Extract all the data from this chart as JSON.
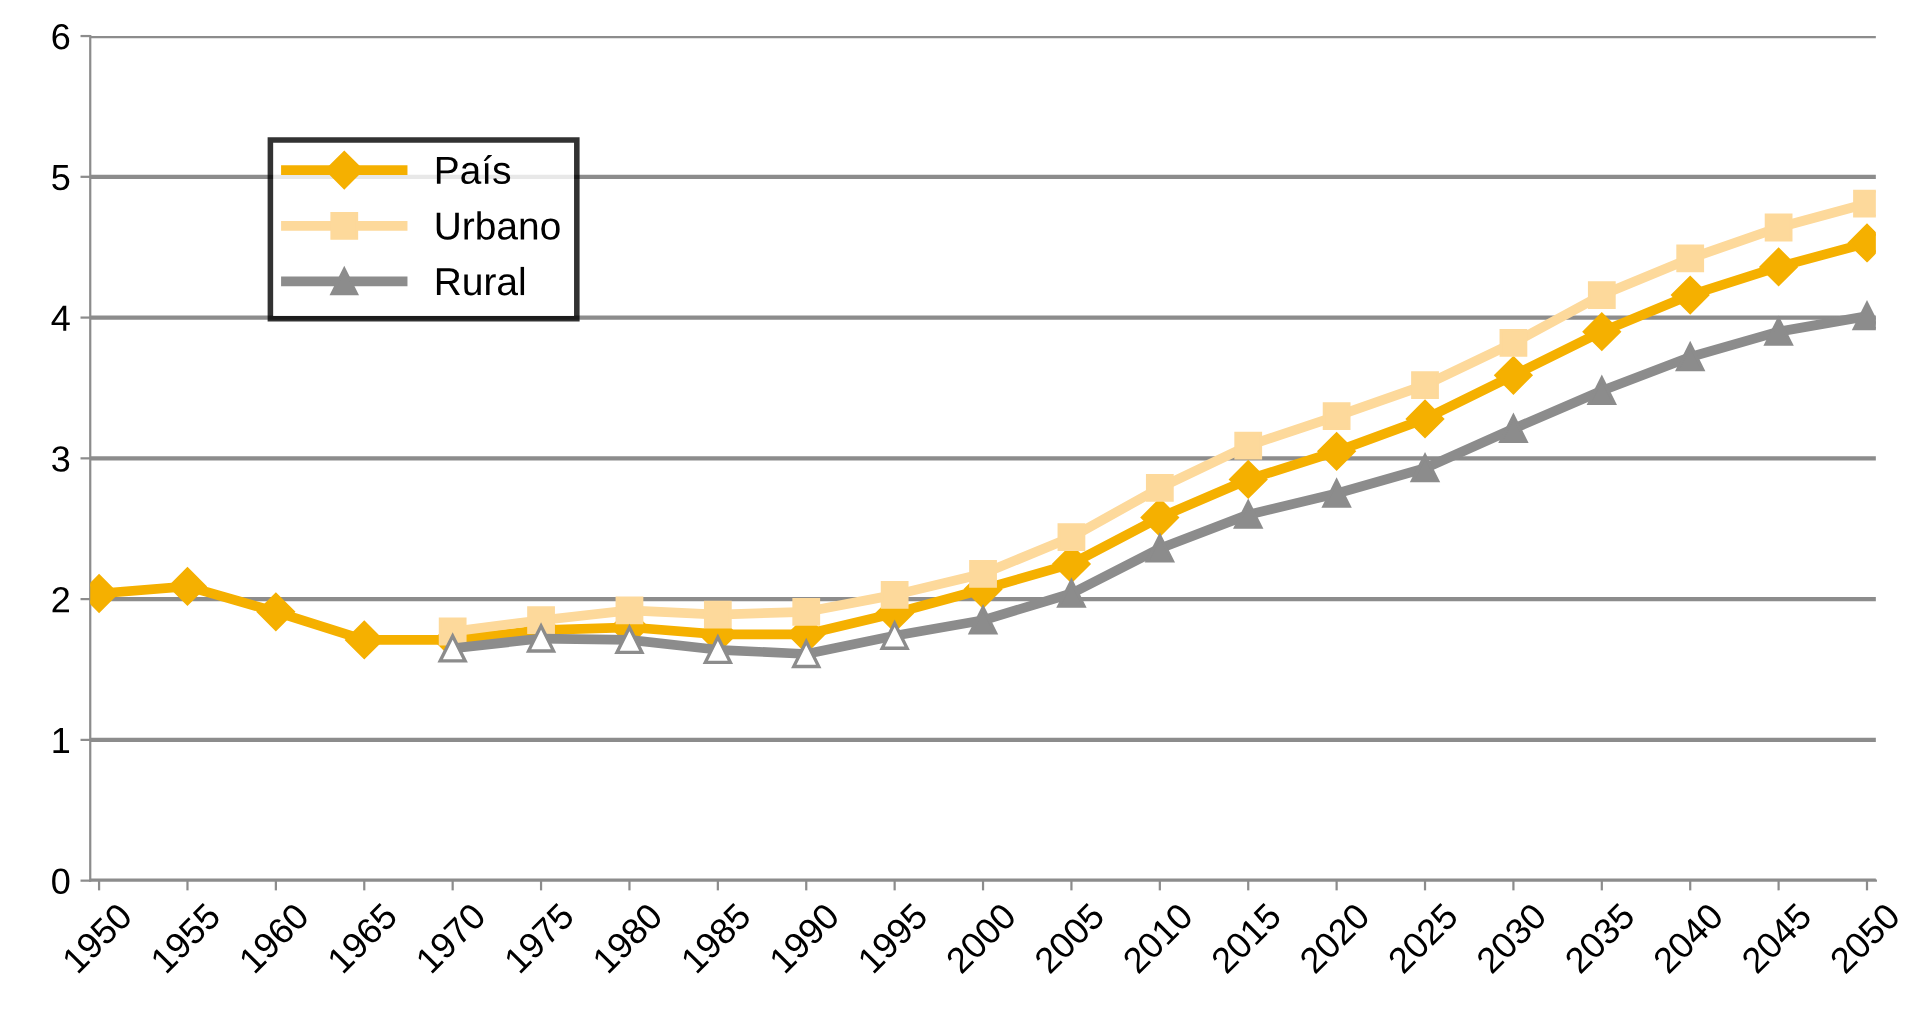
{
  "chart_data": {
    "type": "line",
    "categories": [
      "1950",
      "1955",
      "1960",
      "1965",
      "1970",
      "1975",
      "1980",
      "1985",
      "1990",
      "1995",
      "2000",
      "2005",
      "2010",
      "2015",
      "2020",
      "2025",
      "2030",
      "2035",
      "2040",
      "2045",
      "2050"
    ],
    "series": [
      {
        "name": "País",
        "color": "#f5b000",
        "marker": "diamond",
        "values": [
          2.04,
          2.09,
          1.91,
          1.71,
          1.71,
          1.78,
          1.8,
          1.75,
          1.75,
          1.9,
          2.07,
          2.25,
          2.58,
          2.85,
          3.05,
          3.28,
          3.59,
          3.9,
          4.16,
          4.36,
          4.53
        ]
      },
      {
        "name": "Urbano",
        "color": "#fdd99b",
        "marker": "square",
        "values": [
          null,
          null,
          null,
          null,
          1.77,
          1.85,
          1.92,
          1.89,
          1.91,
          2.03,
          2.18,
          2.44,
          2.79,
          3.09,
          3.3,
          3.52,
          3.82,
          4.16,
          4.42,
          4.64,
          4.81
        ]
      },
      {
        "name": "Rural",
        "color": "#8c8c8c",
        "marker": "triangle",
        "colors": [
          null,
          null,
          null,
          null,
          "#ffffff",
          "#ffffff",
          "#ffffff",
          "#ffffff",
          "#ffffff",
          "#ffffff",
          "#8c8c8c",
          "#8c8c8c",
          "#8c8c8c",
          "#8c8c8c",
          "#8c8c8c",
          "#8c8c8c",
          "#8c8c8c",
          "#8c8c8c",
          "#8c8c8c",
          "#8c8c8c",
          "#8c8c8c"
        ],
        "values": [
          null,
          null,
          null,
          null,
          1.65,
          1.72,
          1.71,
          1.64,
          1.61,
          1.74,
          1.85,
          2.04,
          2.36,
          2.6,
          2.75,
          2.93,
          3.21,
          3.48,
          3.72,
          3.9,
          4.01
        ]
      }
    ],
    "ylim": [
      0,
      6
    ],
    "yticks": [
      0,
      1,
      2,
      3,
      4,
      5,
      6
    ],
    "grid": "y",
    "legend": "top left",
    "line_style": "solid"
  }
}
